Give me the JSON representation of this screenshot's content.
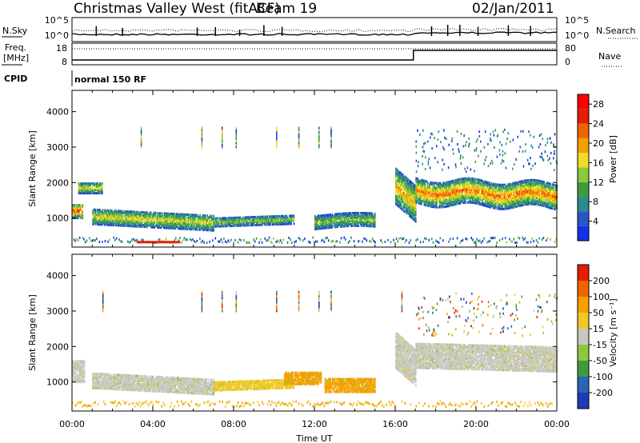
{
  "header": {
    "radar_title": "Christmas Valley West (fitACF)",
    "beam": "Beam 19",
    "date": "02/Jan/2011"
  },
  "panels": {
    "noise": {
      "left_label": "N.Sky",
      "right_label": "N.Search",
      "y_ticks_left": [
        "10^5",
        "10^0"
      ],
      "y_ticks_right": [
        "10^5",
        "10^0"
      ]
    },
    "freq": {
      "left_label_1": "Freq.",
      "left_label_2": "[MHz]",
      "right_label": "Nave",
      "y_ticks_left": [
        "18",
        "8"
      ],
      "y_ticks_right": [
        "80",
        "0"
      ]
    },
    "cpid": {
      "label": "CPID",
      "text": "normal 150 RF"
    }
  },
  "chart_data": [
    {
      "type": "heatmap",
      "title": "",
      "xlabel": "",
      "ylabel": "Slant Range [km]",
      "x_ticks": [
        "00:00",
        "04:00",
        "08:00",
        "12:00",
        "16:00",
        "20:00",
        "00:00"
      ],
      "y_ticks": [
        1000,
        2000,
        3000,
        4000
      ],
      "xlim_hours": [
        0,
        24
      ],
      "ylim_km": [
        180,
        4600
      ],
      "colorbar": {
        "label": "Power [dB]",
        "ticks": [
          4,
          8,
          12,
          16,
          20,
          24,
          28
        ],
        "range": [
          0,
          30
        ],
        "colors": [
          "#1432e6",
          "#2a55c8",
          "#2a8c8c",
          "#3c9c3c",
          "#8cc83c",
          "#f0dc28",
          "#f5a000",
          "#f06400",
          "#e61e00",
          "#ff0000"
        ]
      }
    },
    {
      "type": "heatmap",
      "title": "",
      "xlabel": "Time UT",
      "ylabel": "Slant Range [km]",
      "x_ticks": [
        "00:00",
        "04:00",
        "08:00",
        "12:00",
        "16:00",
        "20:00",
        "00:00"
      ],
      "y_ticks": [
        1000,
        2000,
        3000,
        4000
      ],
      "xlim_hours": [
        0,
        24
      ],
      "ylim_km": [
        180,
        4600
      ],
      "colorbar": {
        "label": "Velocity [m s⁻¹]",
        "ticks": [
          "200",
          "100",
          "50",
          "15",
          "-15",
          "-50",
          "-100",
          "-200"
        ],
        "colors": [
          "#1e3cb4",
          "#2a64b4",
          "#3c9c3c",
          "#8cc83c",
          "#c8c8c0",
          "#f0c828",
          "#f5a000",
          "#f06400",
          "#e61e00"
        ]
      }
    }
  ]
}
